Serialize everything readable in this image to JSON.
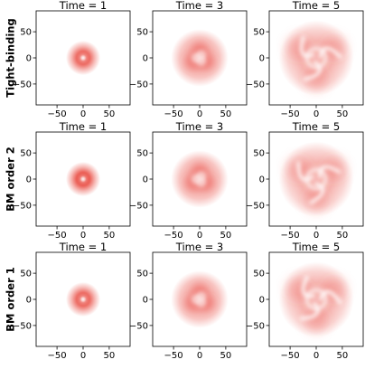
{
  "chart_data": {
    "type": "heatmap",
    "rows": [
      "Tight-binding",
      "BM order 2",
      "BM order 1"
    ],
    "columns": [
      "Time = 1",
      "Time = 3",
      "Time = 5"
    ],
    "xlim": [
      -90,
      90
    ],
    "ylim": [
      -90,
      90
    ],
    "xticks": [
      -50,
      0,
      50
    ],
    "yticks": [
      50,
      0,
      -50
    ],
    "tick_labels_x": [
      "−50",
      "0",
      "50"
    ],
    "tick_labels_y": [
      "50",
      "0",
      "−50"
    ],
    "colormap": [
      "#ffffff",
      "#e8463c"
    ],
    "grid": false
  }
}
